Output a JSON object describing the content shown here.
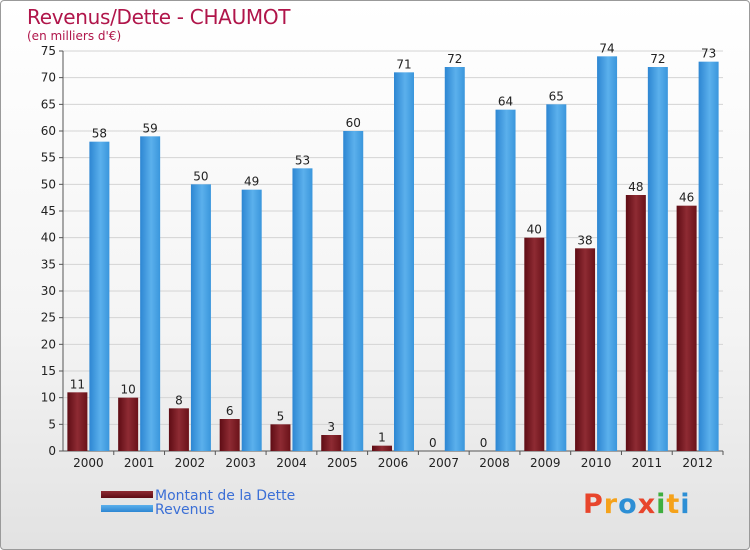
{
  "title": "Revenus/Dette - CHAUMOT",
  "subtitle": "(en milliers d'€)",
  "colors": {
    "dette": "#7a1f26",
    "revenus": "#3c9ae0",
    "title": "#b0154a",
    "legend_text": "#3b6fd6"
  },
  "chart_data": {
    "type": "bar",
    "title": "Revenus/Dette - CHAUMOT",
    "ylabel": "(en milliers d'€)",
    "xlabel": "",
    "ylim": [
      0,
      75
    ],
    "yticks": [
      0,
      5,
      10,
      15,
      20,
      25,
      30,
      35,
      40,
      45,
      50,
      55,
      60,
      65,
      70,
      75
    ],
    "grid": true,
    "categories": [
      "2000",
      "2001",
      "2002",
      "2003",
      "2004",
      "2005",
      "2006",
      "2007",
      "2008",
      "2009",
      "2010",
      "2011",
      "2012"
    ],
    "series": [
      {
        "name": "Montant de la Dette",
        "values": [
          11,
          10,
          8,
          6,
          5,
          3,
          1,
          0,
          0,
          40,
          38,
          48,
          46
        ]
      },
      {
        "name": "Revenus",
        "values": [
          58,
          59,
          50,
          49,
          53,
          60,
          71,
          72,
          64,
          65,
          74,
          72,
          73
        ]
      }
    ]
  },
  "legend": {
    "items": [
      "Montant de la Dette",
      "Revenus"
    ]
  },
  "logo": {
    "letters": [
      "P",
      "r",
      "o",
      "x",
      "i",
      "t",
      "i"
    ],
    "colors": [
      "#e8452c",
      "#f5a21a",
      "#2d8fd5",
      "#e8452c",
      "#3fae3f",
      "#f5a21a",
      "#2d8fd5"
    ]
  }
}
